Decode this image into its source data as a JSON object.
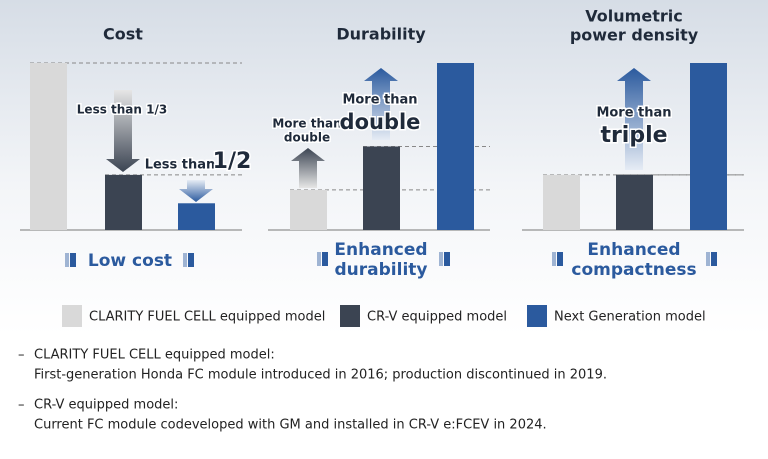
{
  "chart_data": [
    {
      "type": "bar",
      "title": [
        "Cost"
      ],
      "values": [
        100,
        33,
        16
      ],
      "annotations": [
        [
          {
            "text": "Less than 1/3"
          }
        ],
        [
          {
            "text": "Less than"
          },
          {
            "text": "1/2",
            "big": true
          }
        ]
      ],
      "footer": [
        "Low cost"
      ]
    },
    {
      "type": "bar",
      "title": [
        "Durability"
      ],
      "values": [
        24,
        50,
        100
      ],
      "annotations": [
        [
          {
            "text": "More than"
          },
          {
            "text": "double"
          }
        ],
        [
          {
            "text": "More than"
          },
          {
            "text": "double",
            "big": true
          }
        ]
      ],
      "footer": [
        "Enhanced",
        "durability"
      ]
    },
    {
      "type": "bar",
      "title": [
        "Volumetric",
        "power density"
      ],
      "values": [
        33,
        33,
        100
      ],
      "annotations": [
        [
          {
            "text": "More than"
          },
          {
            "text": "triple",
            "big": true
          }
        ]
      ],
      "footer": [
        "Enhanced",
        "compactness"
      ]
    }
  ],
  "legend": [
    {
      "name": "CLARITY FUEL CELL equipped model",
      "color": "#d9d9d9"
    },
    {
      "name": "CR-V equipped model",
      "color": "#3b4452"
    },
    {
      "name": "Next Generation model",
      "color": "#2b5a9e"
    }
  ],
  "notes": [
    {
      "title": "CLARITY FUEL CELL equipped model:",
      "text": "First-generation Honda FC module introduced in 2016; production discontinued in 2019."
    },
    {
      "title": "CR-V equipped model:",
      "text": "Current FC module codeveloped with GM and installed in CR-V e:FCEV in 2024."
    }
  ]
}
